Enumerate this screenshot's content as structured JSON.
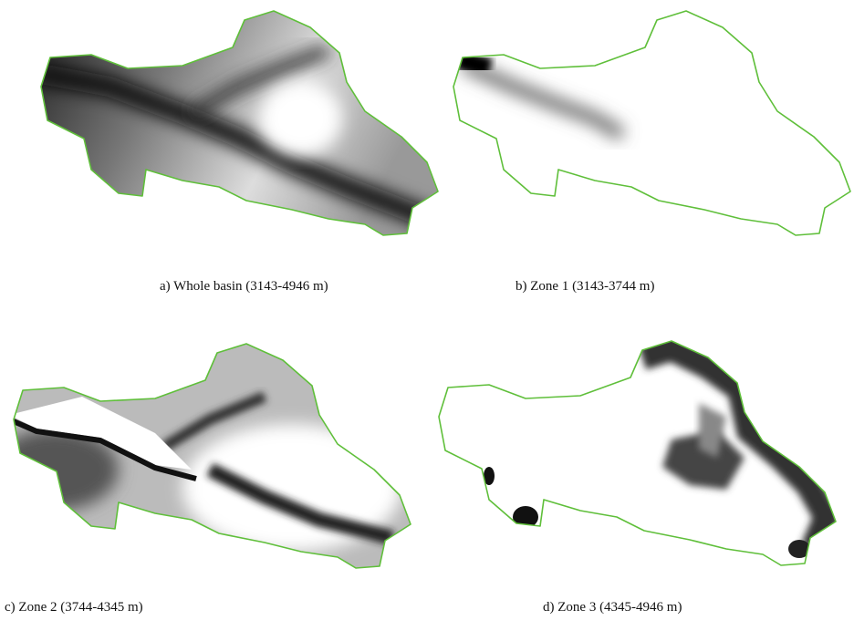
{
  "figure": {
    "panels": [
      {
        "caption": "a) Whole basin (3143-4946 m)"
      },
      {
        "caption": "b) Zone 1 (3143-3744 m)"
      },
      {
        "caption": "c) Zone 2 (3744-4345 m)"
      },
      {
        "caption": "d) Zone 3 (4345-4946 m)"
      }
    ]
  }
}
